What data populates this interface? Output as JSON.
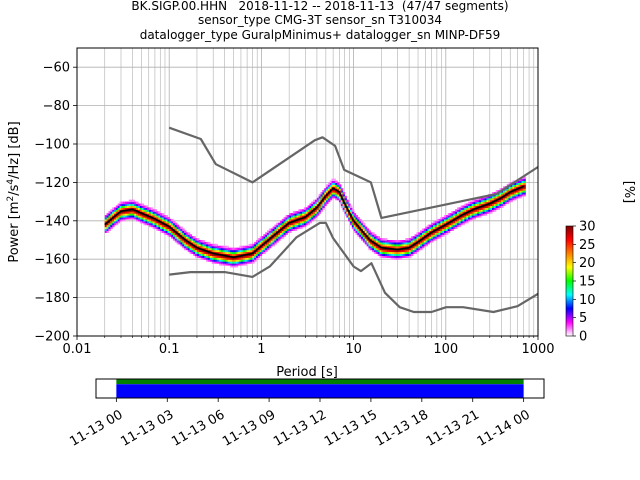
{
  "title_lines": [
    "BK.SIGP.00.HHN   2018-11-12 -- 2018-11-13  (47/47 segments)",
    "sensor_type CMG-3T sensor_sn T310034",
    "datalogger_type GuralpMinimus+ datalogger_sn MINP-DF59"
  ],
  "chart_data": [
    {
      "type": "heatmap",
      "xlabel": "Period [s]",
      "ylabel": "Power [m²/s⁴/Hz] [dB]",
      "x_scale": "log",
      "xlim": [
        0.01,
        1000
      ],
      "ylim": [
        -200,
        -50
      ],
      "x_ticks": [
        0.01,
        0.1,
        1,
        10,
        100,
        1000
      ],
      "x_tick_labels": [
        "0.01",
        "0.1",
        "1",
        "10",
        "100",
        "1000"
      ],
      "y_ticks": [
        -200,
        -180,
        -160,
        -140,
        -120,
        -100,
        -80,
        -60
      ],
      "grid": true,
      "colorbar": {
        "label": "[%]",
        "min": 0,
        "max": 30,
        "ticks": [
          0,
          5,
          10,
          15,
          20,
          25,
          30
        ],
        "colors": [
          "#ffffff",
          "#ff00ff",
          "#0000ff",
          "#00ffff",
          "#00ff00",
          "#ffff00",
          "#ff8000",
          "#ff0000",
          "#800000"
        ]
      },
      "series": [
        {
          "name": "mode",
          "color": "#000000",
          "x": [
            0.02,
            0.025,
            0.03,
            0.04,
            0.05,
            0.07,
            0.1,
            0.15,
            0.2,
            0.3,
            0.5,
            0.8,
            1.0,
            1.5,
            2.0,
            3.0,
            4.0,
            5.0,
            6.0,
            7.0,
            8.0,
            10,
            15,
            20,
            30,
            40,
            50,
            70,
            100,
            150,
            200,
            300,
            400,
            500,
            700
          ],
          "y": [
            -142,
            -138,
            -135,
            -134,
            -136,
            -139,
            -143,
            -150,
            -154,
            -157,
            -159,
            -157,
            -153,
            -146,
            -141,
            -138,
            -133,
            -127,
            -123,
            -125,
            -131,
            -140,
            -150,
            -154,
            -155,
            -154,
            -151,
            -146,
            -142,
            -137,
            -134,
            -131,
            -128,
            -125,
            -122
          ]
        },
        {
          "name": "NHNM",
          "color": "#666666",
          "x": [
            0.1,
            0.22,
            0.32,
            0.8,
            3.8,
            4.6,
            6.3,
            7.9,
            15.4,
            20,
            354.8,
            1000
          ],
          "y": [
            -91.5,
            -97.4,
            -110.5,
            -120,
            -98,
            -96.5,
            -101,
            -113.5,
            -120,
            -138.5,
            -126,
            -112
          ]
        },
        {
          "name": "NLNM",
          "color": "#666666",
          "x": [
            0.1,
            0.17,
            0.4,
            0.8,
            1.24,
            2.4,
            4.3,
            5,
            6,
            10,
            12,
            15.6,
            21.9,
            31.6,
            45,
            70,
            101,
            154,
            328,
            600,
            1000
          ],
          "y": [
            -168,
            -166.7,
            -166.7,
            -169.2,
            -163.7,
            -148.6,
            -141.1,
            -141.1,
            -149,
            -163.8,
            -166.2,
            -162.1,
            -177.5,
            -185,
            -187.5,
            -187.5,
            -185,
            -185,
            -187.5,
            -184.5,
            -178
          ]
        }
      ]
    },
    {
      "type": "timeline",
      "x_tick_labels": [
        "11-13 00",
        "11-13 03",
        "11-13 06",
        "11-13 09",
        "11-13 12",
        "11-13 15",
        "11-13 18",
        "11-13 21",
        "11-14 00"
      ],
      "x_tick_hours": [
        0,
        3,
        6,
        9,
        12,
        15,
        18,
        21,
        24
      ],
      "xlim_hours": [
        -1.2,
        25.2
      ],
      "bars": [
        {
          "start_hour": 0,
          "end_hour": 24,
          "color": "#008000"
        },
        {
          "start_hour": 0,
          "end_hour": 24,
          "color": "#0000ff"
        }
      ]
    }
  ]
}
